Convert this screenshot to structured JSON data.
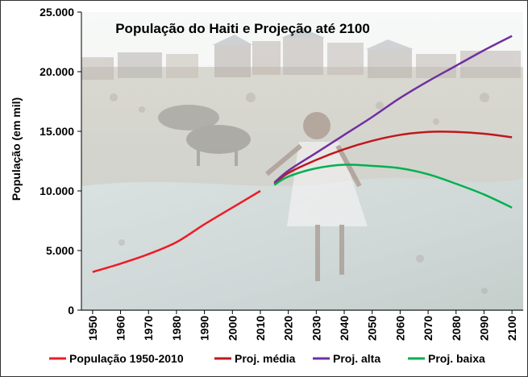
{
  "chart_data": {
    "type": "line",
    "title": "População do Haiti e Projeção até 2100",
    "ylabel": "População (em mil)",
    "xlabel": "",
    "x": [
      1950,
      1960,
      1970,
      1980,
      1990,
      2000,
      2010,
      2020,
      2030,
      2040,
      2050,
      2060,
      2070,
      2080,
      2090,
      2100
    ],
    "x_ticks": [
      "1950",
      "1960",
      "1970",
      "1980",
      "1990",
      "2000",
      "2010",
      "2020",
      "2030",
      "2040",
      "2050",
      "2060",
      "2070",
      "2080",
      "2090",
      "2100"
    ],
    "y_ticks": [
      "0",
      "5.000",
      "10.000",
      "15.000",
      "20.000",
      "25.000"
    ],
    "y_tick_values": [
      0,
      5000,
      10000,
      15000,
      20000,
      25000
    ],
    "xlim": [
      1946,
      2104
    ],
    "ylim": [
      0,
      25000
    ],
    "legend_position": "bottom",
    "grid": false,
    "background": "photograph of a child walking through shallow polluted water near slum dwellings, with pigs in the background",
    "series": [
      {
        "name": "População 1950-2010",
        "color": "#ee1c25",
        "points": [
          [
            1950,
            3200
          ],
          [
            1960,
            3900
          ],
          [
            1970,
            4700
          ],
          [
            1980,
            5700
          ],
          [
            1990,
            7200
          ],
          [
            2000,
            8600
          ],
          [
            2010,
            10000
          ]
        ]
      },
      {
        "name": "Proj. média",
        "color": "#c0171c",
        "points": [
          [
            2015,
            10600
          ],
          [
            2020,
            11500
          ],
          [
            2030,
            12600
          ],
          [
            2040,
            13500
          ],
          [
            2050,
            14200
          ],
          [
            2060,
            14700
          ],
          [
            2070,
            14950
          ],
          [
            2080,
            14950
          ],
          [
            2090,
            14800
          ],
          [
            2100,
            14500
          ]
        ]
      },
      {
        "name": "Proj. alta",
        "color": "#7030a0",
        "points": [
          [
            2015,
            10700
          ],
          [
            2020,
            11700
          ],
          [
            2030,
            13200
          ],
          [
            2040,
            14700
          ],
          [
            2050,
            16200
          ],
          [
            2060,
            17800
          ],
          [
            2070,
            19200
          ],
          [
            2080,
            20500
          ],
          [
            2090,
            21800
          ],
          [
            2100,
            23000
          ]
        ]
      },
      {
        "name": "Proj. baixa",
        "color": "#00b050",
        "points": [
          [
            2015,
            10500
          ],
          [
            2020,
            11200
          ],
          [
            2030,
            11900
          ],
          [
            2040,
            12200
          ],
          [
            2050,
            12100
          ],
          [
            2060,
            11900
          ],
          [
            2070,
            11400
          ],
          [
            2080,
            10600
          ],
          [
            2090,
            9700
          ],
          [
            2100,
            8600
          ]
        ]
      }
    ]
  }
}
